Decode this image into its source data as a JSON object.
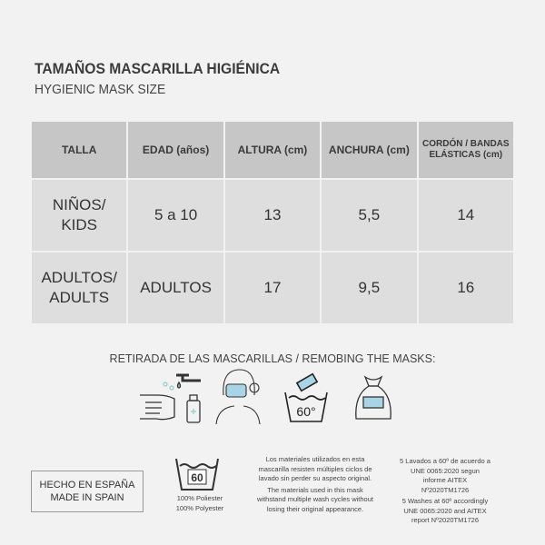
{
  "title": "TAMAÑOS MASCARILLA HIGIÉNICA",
  "subtitle": "HYGIENIC MASK SIZE",
  "table": {
    "headers": [
      "TALLA",
      "EDAD (años)",
      "ALTURA (cm)",
      "ANCHURA (cm)",
      "CORDÓN / BANDAS ELÁSTICAS (cm)"
    ],
    "rows": [
      [
        "NIÑOS/ KIDS",
        "5 a 10",
        "13",
        "5,5",
        "14"
      ],
      [
        "ADULTOS/ ADULTS",
        "ADULTOS",
        "17",
        "9,5",
        "16"
      ]
    ]
  },
  "removal": {
    "title": "RETIRADA DE LAS MASCARILLAS / REMOBING THE MASKS:",
    "wash_temp": "60°",
    "icons": [
      "hand-washing-icon",
      "person-mask-icon",
      "wash-60-icon",
      "bag-icon"
    ]
  },
  "footer": {
    "made_es": "HECHO EN ESPAÑA",
    "made_en": "MADE IN SPAIN",
    "wash_label": "60",
    "material_es": "100% Poliester",
    "material_en": "100% Polyester",
    "materials_es": "Los materiales utilizados en esta mascarilla resisten múltiples ciclos de lavado sin perder su aspecto original.",
    "materials_en": "The materials used in this mask withstand multiple wash cycles without losing their original appearance.",
    "washes_es": "5 Lavados a 60º de acuerdo a UNE 0065:2020 segun informe AITEX Nº2020TM1726",
    "washes_en": "5 Washes at 60º accordingly UNE 0065:2020 and AITEX report Nº2020TM1726"
  },
  "colors": {
    "background": "#f2f2f2",
    "header_cell": "#c6c6c6",
    "body_cell": "#dedede",
    "mask_blue": "#a8d4e6"
  }
}
